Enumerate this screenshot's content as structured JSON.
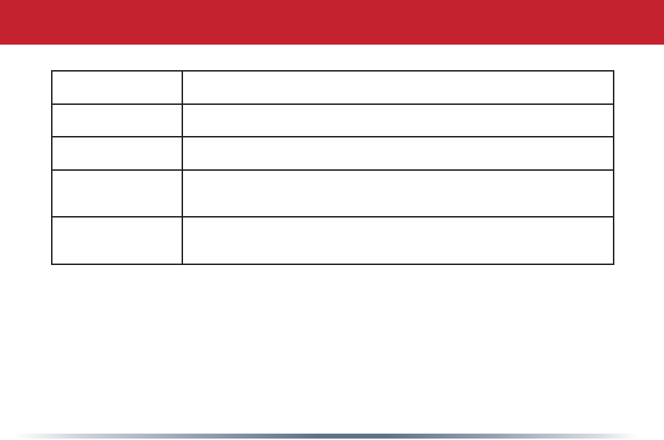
{
  "page": {
    "background_color": "#ffffff",
    "type": "manual-page-with-empty-table"
  },
  "header": {
    "band_color": "#c4222e",
    "text": ""
  },
  "table": {
    "border_color": "#231f20",
    "column_count": 2,
    "row_count": 5,
    "rows": [
      {
        "term": "",
        "description": ""
      },
      {
        "term": "",
        "description": ""
      },
      {
        "term": "",
        "description": ""
      },
      {
        "term": "",
        "description": ""
      },
      {
        "term": "",
        "description": ""
      }
    ]
  },
  "footer": {
    "gradient_center_color": "#5e7289",
    "gradient_edge_color": "#ffffff",
    "text": ""
  }
}
